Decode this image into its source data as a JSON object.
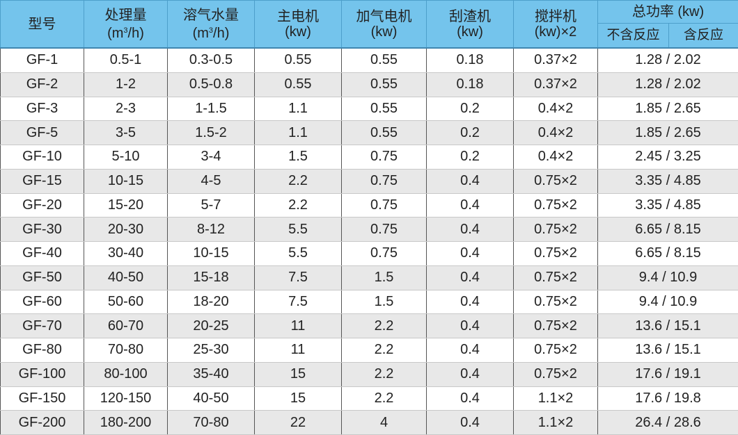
{
  "table": {
    "headers": [
      {
        "line1": "型号",
        "line2": ""
      },
      {
        "line1": "处理量",
        "line2": "(m",
        "sup": "3",
        "line2_end": "/h)"
      },
      {
        "line1": "溶气水量",
        "line2": "(m",
        "sup": "3",
        "line2_end": "/h)"
      },
      {
        "line1": "主电机",
        "line2": "(kw)"
      },
      {
        "line1": "加气电机",
        "line2": "(kw)"
      },
      {
        "line1": "刮渣机",
        "line2": "(kw)"
      },
      {
        "line1": "搅拌机",
        "line2": "(kw)×2"
      }
    ],
    "total_header": "总功率 (kw)",
    "total_sub": [
      "不含反应",
      "含反应"
    ],
    "rows": [
      [
        "GF-1",
        "0.5-1",
        "0.3-0.5",
        "0.55",
        "0.55",
        "0.18",
        "0.37×2",
        "1.28 / 2.02"
      ],
      [
        "GF-2",
        "1-2",
        "0.5-0.8",
        "0.55",
        "0.55",
        "0.18",
        "0.37×2",
        "1.28 / 2.02"
      ],
      [
        "GF-3",
        "2-3",
        "1-1.5",
        "1.1",
        "0.55",
        "0.2",
        "0.4×2",
        "1.85 / 2.65"
      ],
      [
        "GF-5",
        "3-5",
        "1.5-2",
        "1.1",
        "0.55",
        "0.2",
        "0.4×2",
        "1.85 / 2.65"
      ],
      [
        "GF-10",
        "5-10",
        "3-4",
        "1.5",
        "0.75",
        "0.2",
        "0.4×2",
        "2.45 / 3.25"
      ],
      [
        "GF-15",
        "10-15",
        "4-5",
        "2.2",
        "0.75",
        "0.4",
        "0.75×2",
        "3.35 / 4.85"
      ],
      [
        "GF-20",
        "15-20",
        "5-7",
        "2.2",
        "0.75",
        "0.4",
        "0.75×2",
        "3.35 / 4.85"
      ],
      [
        "GF-30",
        "20-30",
        "8-12",
        "5.5",
        "0.75",
        "0.4",
        "0.75×2",
        "6.65 / 8.15"
      ],
      [
        "GF-40",
        "30-40",
        "10-15",
        "5.5",
        "0.75",
        "0.4",
        "0.75×2",
        "6.65 / 8.15"
      ],
      [
        "GF-50",
        "40-50",
        "15-18",
        "7.5",
        "1.5",
        "0.4",
        "0.75×2",
        "9.4 / 10.9"
      ],
      [
        "GF-60",
        "50-60",
        "18-20",
        "7.5",
        "1.5",
        "0.4",
        "0.75×2",
        "9.4 / 10.9"
      ],
      [
        "GF-70",
        "60-70",
        "20-25",
        "11",
        "2.2",
        "0.4",
        "0.75×2",
        "13.6 / 15.1"
      ],
      [
        "GF-80",
        "70-80",
        "25-30",
        "11",
        "2.2",
        "0.4",
        "0.75×2",
        "13.6 / 15.1"
      ],
      [
        "GF-100",
        "80-100",
        "35-40",
        "15",
        "2.2",
        "0.4",
        "0.75×2",
        "17.6 / 19.1"
      ],
      [
        "GF-150",
        "120-150",
        "40-50",
        "15",
        "2.2",
        "0.4",
        "1.1×2",
        "17.6 / 19.8"
      ],
      [
        "GF-200",
        "180-200",
        "70-80",
        "22",
        "4",
        "0.4",
        "1.1×2",
        "26.4 / 28.6"
      ]
    ]
  },
  "colors": {
    "header_bg": "#74c4ec",
    "alt_row_bg": "#e8e8e8"
  }
}
